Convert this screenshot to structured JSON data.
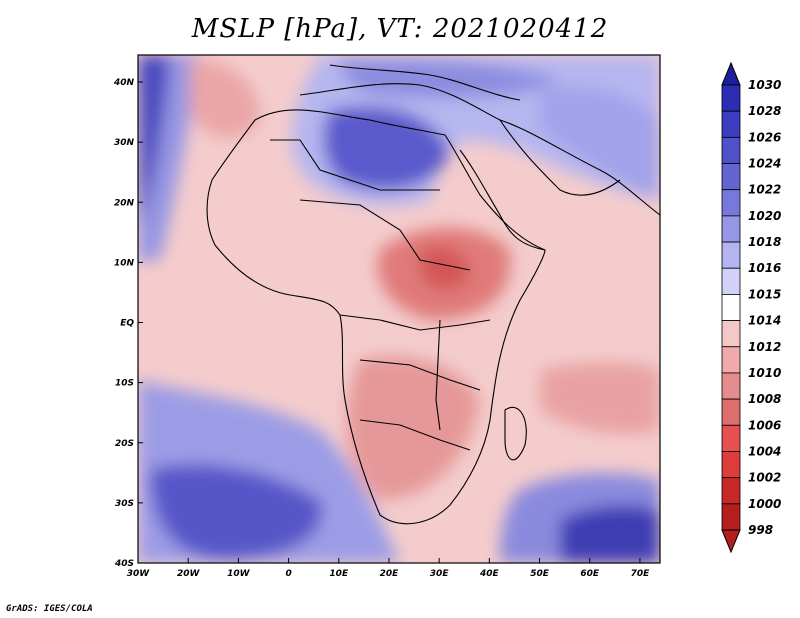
{
  "title": "MSLP [hPa], VT: 2021020412",
  "credit": "GrADS: IGES/COLA",
  "axes": {
    "x_ticks": [
      "30W",
      "20W",
      "10W",
      "0",
      "10E",
      "20E",
      "30E",
      "40E",
      "50E",
      "60E",
      "70E"
    ],
    "y_ticks": [
      "40N",
      "30N",
      "20N",
      "10N",
      "EQ",
      "10S",
      "20S",
      "30S",
      "40S"
    ]
  },
  "colorbar": {
    "levels": [
      "1030",
      "1028",
      "1026",
      "1024",
      "1022",
      "1020",
      "1018",
      "1016",
      "1015",
      "1014",
      "1012",
      "1010",
      "1008",
      "1006",
      "1004",
      "1002",
      "1000",
      "998"
    ],
    "colors": [
      "#1e1ea0",
      "#2d2db4",
      "#3c3cc0",
      "#5050c8",
      "#6464d2",
      "#7878dc",
      "#9696e6",
      "#b4b4f0",
      "#d2d2f8",
      "#ffffff",
      "#f5c8c8",
      "#f0aaaa",
      "#e68c8c",
      "#dc6e6e",
      "#e65050",
      "#dc3c3c",
      "#c82828",
      "#b41e1e"
    ]
  },
  "colors": {
    "high_deep": "#3232b4",
    "high_mid": "#6e6ed8",
    "high_light": "#aaaaee",
    "neutral": "#ffffff",
    "low_light": "#f2c2c2",
    "low_mid": "#e89090",
    "low_deep": "#d86060"
  }
}
